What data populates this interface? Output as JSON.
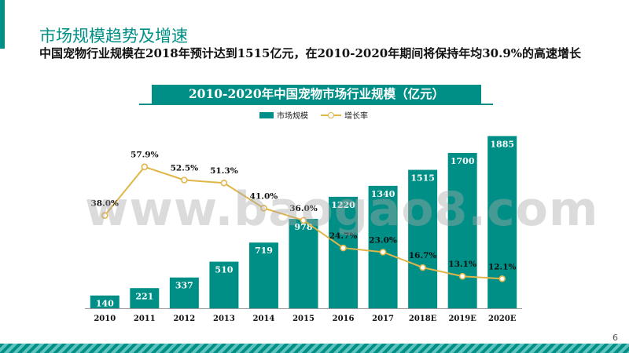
{
  "slide": {
    "title": "市场规模趋势及增速",
    "subtitle": "中国宠物行业规模在2018年预计达到1515亿元，在2010-2020年期间将保持年均30.9%的高速增长",
    "page_number": "6",
    "watermark": "www.baogao8.com",
    "accent_color": "#008f86"
  },
  "chart_data": {
    "type": "bar",
    "title": "2010-2020年中国宠物市场行业规模（亿元）",
    "categories": [
      "2010",
      "2011",
      "2012",
      "2013",
      "2014",
      "2015",
      "2016",
      "2017",
      "2018E",
      "2019E",
      "2020E"
    ],
    "series": [
      {
        "name": "市场规模",
        "type": "bar",
        "axis": "left",
        "color": "#008f86",
        "values": [
          140,
          221,
          337,
          510,
          719,
          978,
          1220,
          1340,
          1515,
          1700,
          1885
        ]
      },
      {
        "name": "增长率",
        "type": "line",
        "axis": "right",
        "color": "#e0b54a",
        "values": [
          38.0,
          57.9,
          52.5,
          51.3,
          41.0,
          36.0,
          24.7,
          23.0,
          16.7,
          13.1,
          12.1
        ],
        "labels": [
          "38.0%",
          "57.9%",
          "52.5%",
          "51.3%",
          "41.0%",
          "36.0%",
          "24.7%",
          "23.0%",
          "16.7%",
          "13.1%",
          "12.1%"
        ]
      }
    ],
    "ylim_left": [
      0,
      2000
    ],
    "ylim_right": [
      0,
      70
    ],
    "legend_position": "top-center",
    "grid": false
  }
}
